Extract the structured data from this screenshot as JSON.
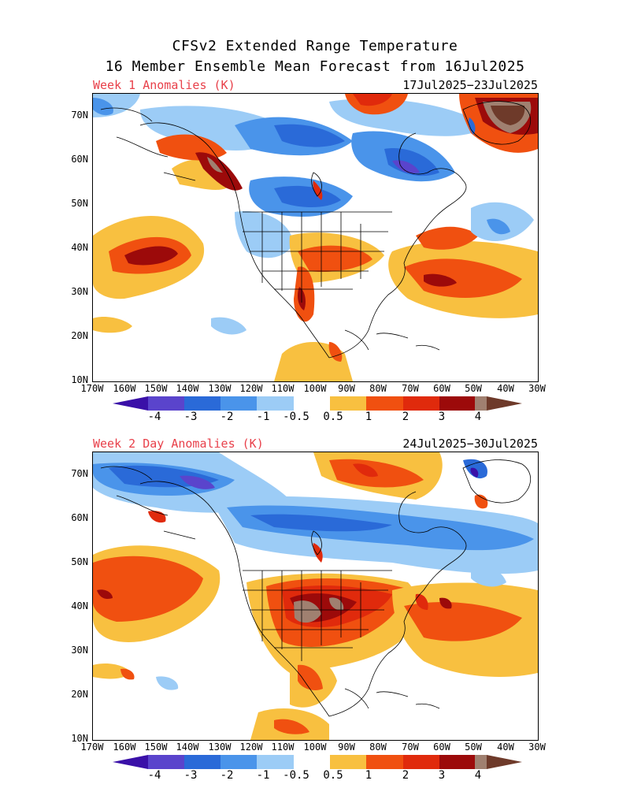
{
  "title_line1": "CFSv2 Extended Range Temperature",
  "title_line2": "16 Member Ensemble Mean Forecast from 16Jul2025",
  "colors": {
    "c_m4": "#3a10a8",
    "c_m3": "#5a44cc",
    "c_m2": "#2a6ad8",
    "c_m1": "#4a94ea",
    "c_m05": "#9cccf6",
    "c_0": "#ffffff",
    "c_p05": "#f8c040",
    "c_p1": "#f05010",
    "c_p2": "#e02a0c",
    "c_p3": "#9c0a0a",
    "c_p4": "#a08070",
    "c_p5": "#6e3a2a",
    "panel_label": "#e8404a"
  },
  "lat_labels": [
    "70N",
    "60N",
    "50N",
    "40N",
    "30N",
    "20N",
    "10N"
  ],
  "lon_labels": [
    "170W",
    "160W",
    "150W",
    "140W",
    "130W",
    "120W",
    "110W",
    "100W",
    "90W",
    "80W",
    "70W",
    "60W",
    "50W",
    "40W",
    "30W"
  ],
  "colorbar_labels": [
    "-4",
    "-3",
    "-2",
    "-1",
    "-0.5",
    "0.5",
    "1",
    "2",
    "3",
    "4"
  ],
  "panels": [
    {
      "label": "Week 1 Anomalies (K)",
      "dates": "17Jul2025−23Jul2025"
    },
    {
      "label": "Week 2 Day Anomalies (K)",
      "dates": "24Jul2025−30Jul2025"
    }
  ]
}
